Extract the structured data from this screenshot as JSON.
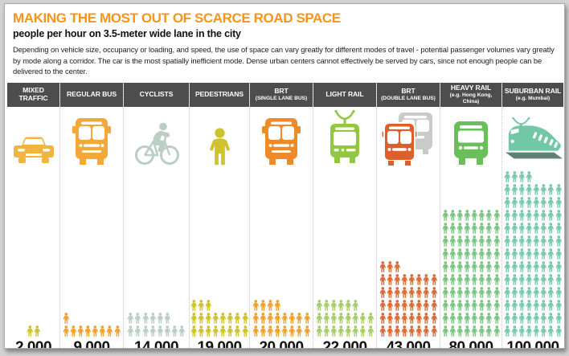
{
  "header": {
    "title": "MAKING THE MOST OUT OF SCARCE ROAD SPACE",
    "title_color": "#F7941E",
    "subtitle": "people per hour on 3.5-meter wide lane in the city",
    "description": "Depending on vehicle size, occupancy or loading, and speed, the use of space can vary greatly for different modes of travel - potential passenger volumes vary greatly by mode along a corridor. The car is the most spatially inefficient mode. Dense urban centers cannot effectively be served by cars, since not enough people can be delivered to the center."
  },
  "header_band_color": "#4D4D4D",
  "columns": [
    {
      "label": "MIXED TRAFFIC",
      "sublabel": "",
      "icon": "car",
      "icon_color": "#F1B43C",
      "icon_color2": "",
      "people_color": "#CEC22F",
      "people_icons": 2,
      "value": "2.000"
    },
    {
      "label": "REGULAR BUS",
      "sublabel": "",
      "icon": "bus",
      "icon_color": "#F4A838",
      "icon_color2": "",
      "people_color": "#F5A02A",
      "people_icons": 9,
      "value": "9.000"
    },
    {
      "label": "CYCLISTS",
      "sublabel": "",
      "icon": "cyclist",
      "icon_color": "#BACEC3",
      "icon_color2": "",
      "people_color": "#BACEC3",
      "people_icons": 14,
      "value": "14.000"
    },
    {
      "label": "PEDESTRIANS",
      "sublabel": "",
      "icon": "pedestrian",
      "icon_color": "#CEC22F",
      "icon_color2": "",
      "people_color": "#CEC22F",
      "people_icons": 19,
      "value": "19.000"
    },
    {
      "label": "BRT",
      "sublabel": "(SINGLE LANE BUS)",
      "icon": "bus",
      "icon_color": "#EE8A28",
      "icon_color2": "",
      "people_color": "#F5A02A",
      "people_icons": 20,
      "value": "20.000"
    },
    {
      "label": "LIGHT RAIL",
      "sublabel": "",
      "icon": "tram",
      "icon_color": "#92C83E",
      "icon_color2": "",
      "people_color": "#A6CD68",
      "people_icons": 22,
      "value": "22.000"
    },
    {
      "label": "BRT",
      "sublabel": "(DOUBLE LANE BUS)",
      "icon": "doublebus",
      "icon_color": "#DF5F2C",
      "icon_color2": "#C8CBC7",
      "people_color": "#E06930",
      "people_icons": 43,
      "value": "43.000"
    },
    {
      "label": "HEAVY RAIL",
      "sublabel": "(e.g. Hong Kong, China)",
      "icon": "train",
      "icon_color": "#6BBF58",
      "icon_color2": "",
      "people_color": "#7AC57F",
      "people_icons": 80,
      "value": "80.000"
    },
    {
      "label": "SUBURBAN RAIL",
      "sublabel": "(e.g. Mumbai)",
      "icon": "suburban",
      "icon_color": "#72C7A6",
      "icon_color2": "#5F8274",
      "people_color": "#76C9A9",
      "people_icons": 100,
      "value": "100.000"
    }
  ],
  "chart_data": {
    "type": "bar",
    "variant": "pictogram",
    "title": "MAKING THE MOST OUT OF SCARCE ROAD SPACE",
    "subtitle": "people per hour on 3.5-meter wide lane in the city",
    "categories": [
      "Mixed Traffic",
      "Regular Bus",
      "Cyclists",
      "Pedestrians",
      "BRT (Single Lane Bus)",
      "Light Rail",
      "BRT (Double Lane Bus)",
      "Heavy Rail (e.g. Hong Kong, China)",
      "Suburban Rail (e.g. Mumbai)"
    ],
    "values": [
      2000,
      9000,
      14000,
      19000,
      20000,
      22000,
      43000,
      80000,
      100000
    ],
    "value_labels": [
      "2.000",
      "9.000",
      "14.000",
      "19.000",
      "20.000",
      "22.000",
      "43.000",
      "80.000",
      "100.000"
    ],
    "people_per_icon": 1000,
    "icons_per_row": 8,
    "ylabel": "people per hour",
    "legend_position": "none",
    "grid": false
  }
}
